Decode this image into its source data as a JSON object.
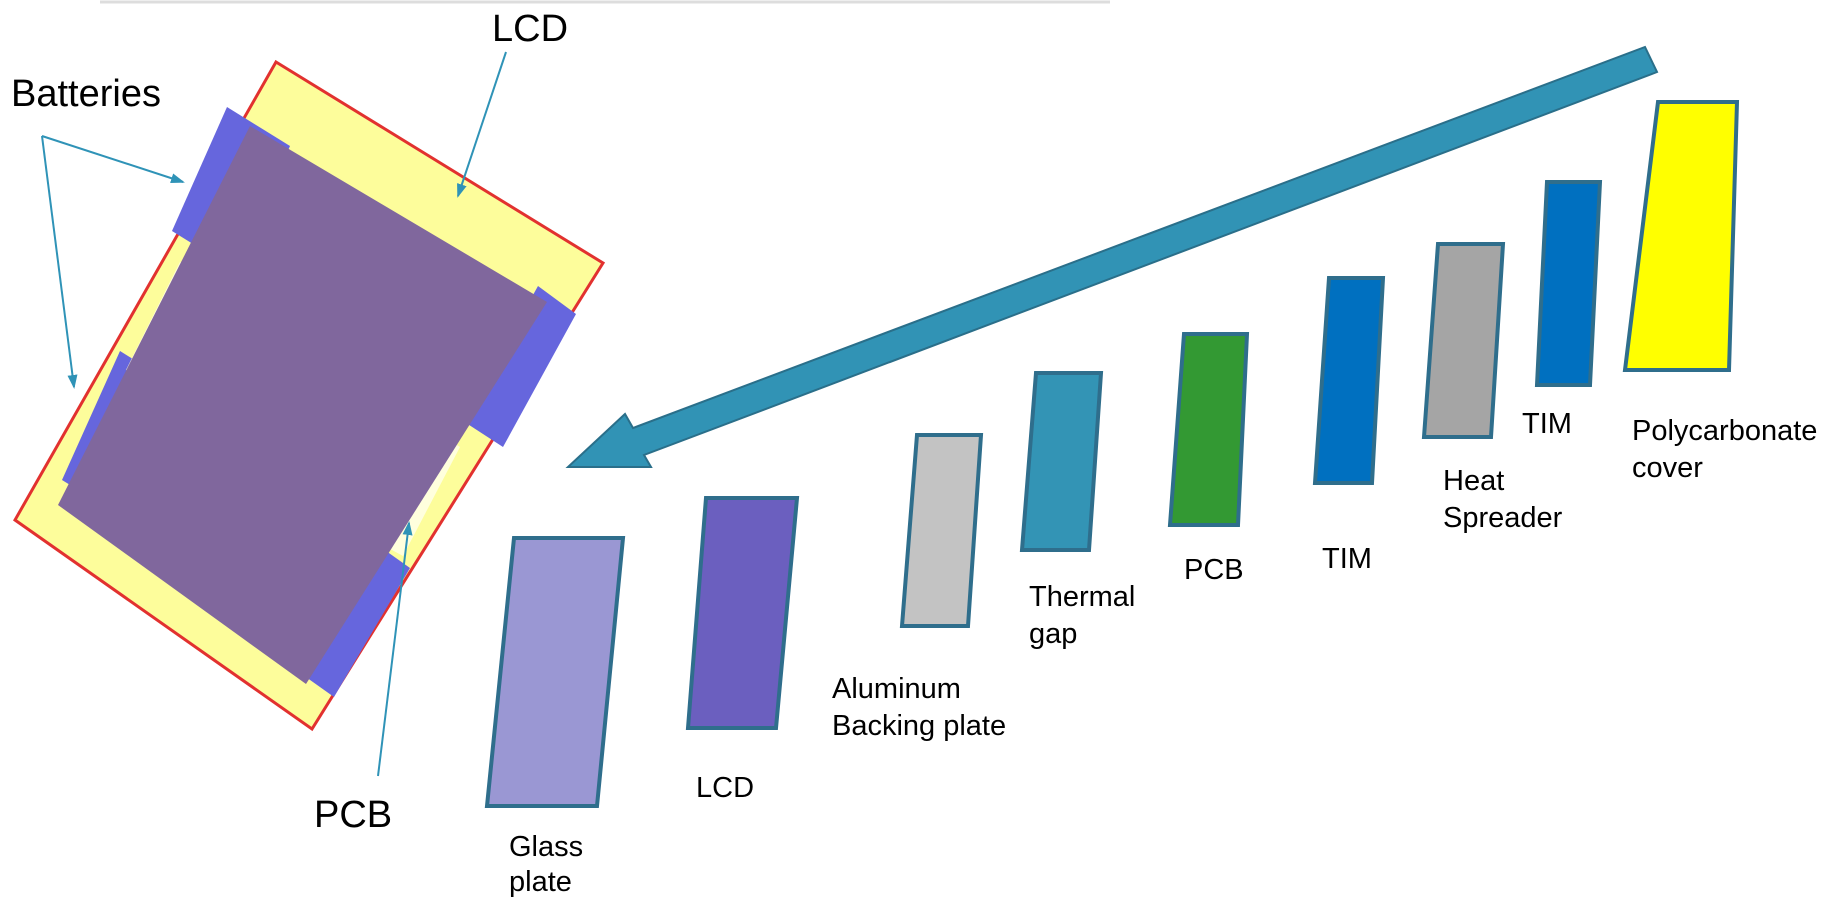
{
  "device_view": {
    "labels": {
      "lcd": "LCD",
      "batteries": "Batteries",
      "pcb": "PCB"
    },
    "colors": {
      "outline": "#e2312f",
      "frame": "#fdfd9b",
      "battery": "#6666dd",
      "lcd_panel": "#80679d",
      "pcb_slot": "#ffffdd",
      "leader": "#2f93b7"
    }
  },
  "arrow": {
    "color": "#3193b5",
    "stroke": "#2a6f8a"
  },
  "layers": [
    {
      "id": "glass",
      "label_lines": [
        "Glass",
        "plate"
      ],
      "fill": "#9a97d3"
    },
    {
      "id": "lcd",
      "label_lines": [
        "LCD"
      ],
      "fill": "#6b5fbf"
    },
    {
      "id": "aluminum",
      "label_lines": [
        "Aluminum",
        "Backing plate"
      ],
      "fill": "#c3c3c3"
    },
    {
      "id": "thermal-gap",
      "label_lines": [
        "Thermal",
        "gap"
      ],
      "fill": "#3394b5"
    },
    {
      "id": "pcb",
      "label_lines": [
        "PCB"
      ],
      "fill": "#339933"
    },
    {
      "id": "tim-1",
      "label_lines": [
        "TIM"
      ],
      "fill": "#0070c0"
    },
    {
      "id": "heat-spreader",
      "label_lines": [
        "Heat",
        "Spreader"
      ],
      "fill": "#a5a5a5"
    },
    {
      "id": "tim-2",
      "label_lines": [
        "TIM"
      ],
      "fill": "#0070c0"
    },
    {
      "id": "polycarbonate",
      "label_lines": [
        "Polycarbonate",
        "cover"
      ],
      "fill": "#ffff00"
    }
  ],
  "layer_stroke": "#2f6e8c"
}
